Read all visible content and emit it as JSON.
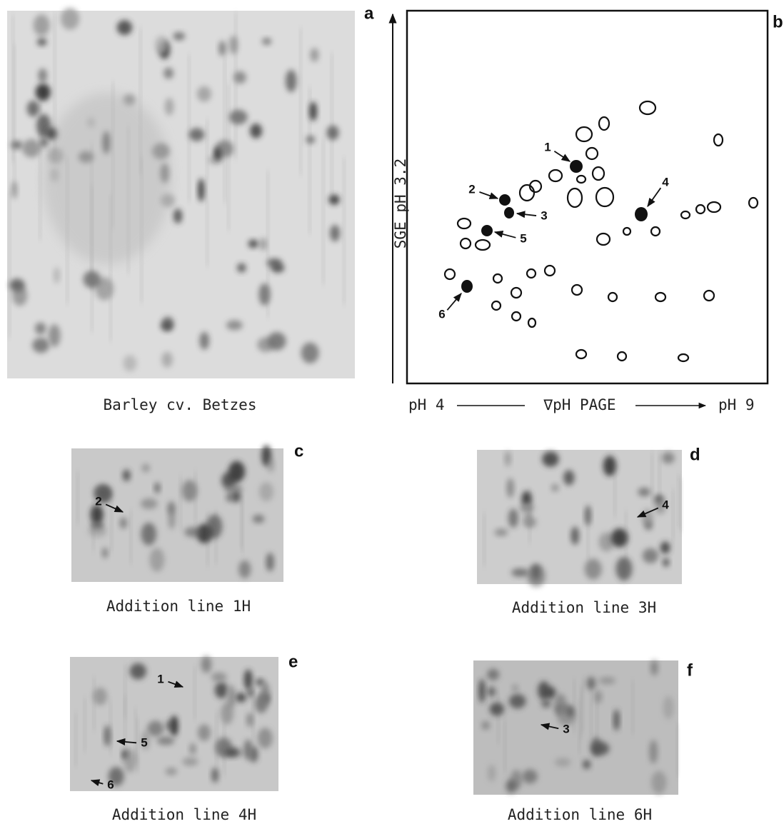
{
  "panels": [
    {
      "letter": "a",
      "caption": "Barley cv. Betzes"
    },
    {
      "letter": "b",
      "x_axis": {
        "left": "pH 4",
        "center": "∇pH PAGE",
        "right": "pH 9"
      },
      "y_axis": "SGE pH 3.2",
      "spot_labels": [
        "1",
        "2",
        "3",
        "4",
        "5",
        "6"
      ]
    },
    {
      "letter": "c",
      "caption": "Addition line 1H",
      "spot_labels": [
        "2"
      ]
    },
    {
      "letter": "d",
      "caption": "Addition line 3H",
      "spot_labels": [
        "4"
      ]
    },
    {
      "letter": "e",
      "caption": "Addition line 4H",
      "spot_labels": [
        "1",
        "5",
        "6"
      ]
    },
    {
      "letter": "f",
      "caption": "Addition line 6H",
      "spot_labels": [
        "3"
      ]
    }
  ]
}
